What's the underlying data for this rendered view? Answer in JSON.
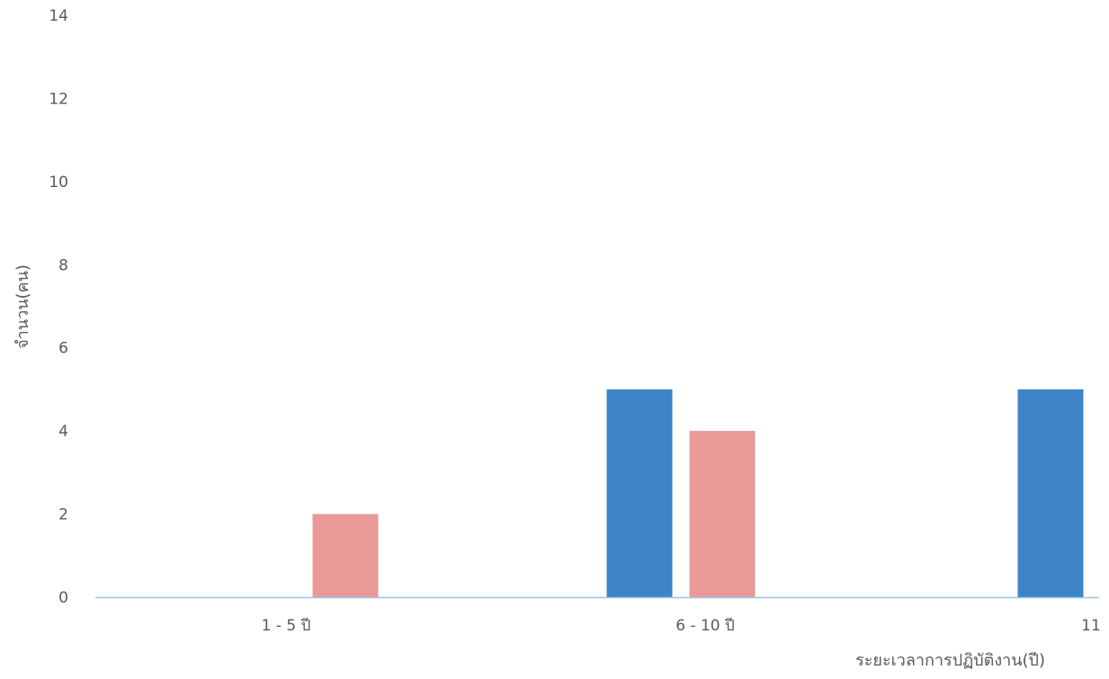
{
  "chart_data": {
    "type": "bar",
    "title": "",
    "xlabel": "ระยะเวลาการปฏิบัติงาน(ปี)",
    "ylabel": "จำนวน(คน)",
    "categories": [
      "1 - 5 ปี",
      "6 - 10 ปี",
      "11"
    ],
    "series": [
      {
        "values": [
          0,
          5,
          5
        ],
        "color": "#3d85c6"
      },
      {
        "values": [
          2,
          4,
          null
        ],
        "color": "#ea9999"
      }
    ],
    "ylim": [
      0,
      14
    ],
    "yticks": [
      0,
      2,
      4,
      6,
      8,
      10,
      12,
      14
    ],
    "grid": false,
    "legend": "none",
    "axis_color": "#9dc3e6"
  }
}
